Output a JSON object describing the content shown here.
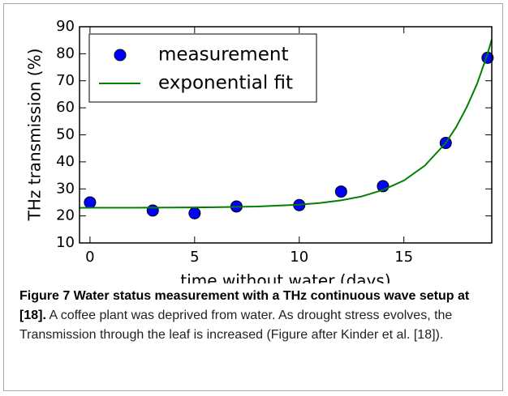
{
  "chart_data": {
    "type": "scatter",
    "xlabel": "time without water (days)",
    "ylabel": "THz transmission (%)",
    "xlim": [
      -0.5,
      19.2
    ],
    "ylim": [
      10,
      90
    ],
    "xticks": [
      0,
      5,
      10,
      15
    ],
    "yticks": [
      10,
      20,
      30,
      40,
      50,
      60,
      70,
      80,
      90
    ],
    "legend": "upper left",
    "series": [
      {
        "name": "measurement",
        "color": "#0000ff",
        "x": [
          0,
          3,
          5,
          7,
          10,
          12,
          14,
          17,
          19
        ],
        "values": [
          25,
          22,
          21,
          23.5,
          24,
          29,
          31,
          47,
          78.5
        ]
      },
      {
        "name": "exponential fit",
        "type": "line",
        "color": "#008000",
        "x": [
          -0.5,
          0,
          2,
          4,
          6,
          8,
          10,
          11,
          12,
          13,
          14,
          15,
          16,
          17,
          17.5,
          18,
          18.5,
          19,
          19.2
        ],
        "values": [
          23,
          23.02,
          23.04,
          23.09,
          23.21,
          23.49,
          24.16,
          24.8,
          25.77,
          27.25,
          29.6,
          33.1,
          38.6,
          47,
          52.9,
          60.2,
          68.9,
          80,
          85.3
        ]
      }
    ]
  },
  "caption": {
    "title": "Figure 7 Water status measurement with a THz continuous wave setup at [18].",
    "text": "A coffee plant was deprived from water. As drought stress evolves, the Transmission through the leaf is increased (Figure after Kinder et al. [18])."
  }
}
